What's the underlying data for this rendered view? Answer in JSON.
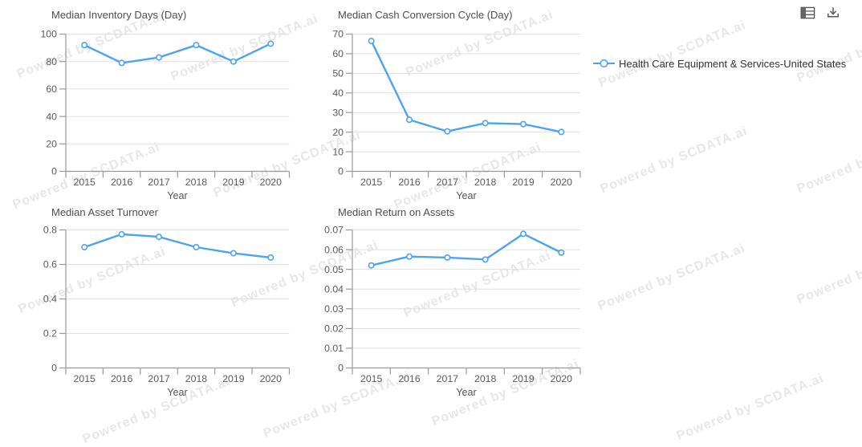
{
  "watermark": {
    "text": "Powered by SCDATA.ai"
  },
  "toolbar": {
    "data_view_tooltip": "Data View",
    "download_tooltip": "Download"
  },
  "legend": {
    "items": [
      {
        "label": "Health Care Equipment & Services-United States",
        "color": "#4da3f0"
      }
    ]
  },
  "colors": {
    "line": "#4da3f0",
    "marker_fill": "#ffffff",
    "grid": "#e0e0e0",
    "axis": "#999999",
    "tick_label": "#5a5a5a",
    "title": "#4e4e4e",
    "icon": "#555555"
  },
  "chart_data": [
    {
      "type": "line",
      "title": "Median Inventory Days (Day)",
      "xlabel": "Year",
      "ylabel": "",
      "categories": [
        "2015",
        "2016",
        "2017",
        "2018",
        "2019",
        "2020"
      ],
      "series": [
        {
          "name": "Health Care Equipment & Services-United States",
          "values": [
            92,
            79,
            83,
            92,
            80,
            93
          ]
        }
      ],
      "ylim": [
        0,
        100
      ],
      "yticks": [
        0,
        20,
        40,
        60,
        80,
        100
      ],
      "ytick_labels": [
        "0",
        "20",
        "40",
        "60",
        "80",
        "100"
      ],
      "grid": true,
      "legend_position": "right"
    },
    {
      "type": "line",
      "title": "Median Cash Conversion Cycle (Day)",
      "xlabel": "Year",
      "ylabel": "",
      "categories": [
        "2015",
        "2016",
        "2017",
        "2018",
        "2019",
        "2020"
      ],
      "series": [
        {
          "name": "Health Care Equipment & Services-United States",
          "values": [
            66.5,
            26.3,
            20.4,
            24.6,
            24.1,
            20.1
          ]
        }
      ],
      "ylim": [
        0,
        70
      ],
      "yticks": [
        0,
        10,
        20,
        30,
        40,
        50,
        60,
        70
      ],
      "ytick_labels": [
        "0",
        "10",
        "20",
        "30",
        "40",
        "50",
        "60",
        "70"
      ],
      "grid": true,
      "legend_position": "right"
    },
    {
      "type": "line",
      "title": "Median Asset Turnover",
      "xlabel": "Year",
      "ylabel": "",
      "categories": [
        "2015",
        "2016",
        "2017",
        "2018",
        "2019",
        "2020"
      ],
      "series": [
        {
          "name": "Health Care Equipment & Services-United States",
          "values": [
            0.7,
            0.775,
            0.76,
            0.7,
            0.665,
            0.64
          ]
        }
      ],
      "ylim": [
        0,
        0.8
      ],
      "yticks": [
        0,
        0.2,
        0.4,
        0.6,
        0.8
      ],
      "ytick_labels": [
        "0",
        "0.2",
        "0.4",
        "0.6",
        "0.8"
      ],
      "grid": true,
      "legend_position": "right"
    },
    {
      "type": "line",
      "title": "Median Return on Assets",
      "xlabel": "Year",
      "ylabel": "",
      "categories": [
        "2015",
        "2016",
        "2017",
        "2018",
        "2019",
        "2020"
      ],
      "series": [
        {
          "name": "Health Care Equipment & Services-United States",
          "values": [
            0.052,
            0.0565,
            0.056,
            0.055,
            0.068,
            0.0585
          ]
        }
      ],
      "ylim": [
        0,
        0.07
      ],
      "yticks": [
        0,
        0.01,
        0.02,
        0.03,
        0.04,
        0.05,
        0.06,
        0.07
      ],
      "ytick_labels": [
        "0",
        "0.01",
        "0.02",
        "0.03",
        "0.04",
        "0.05",
        "0.06",
        "0.07"
      ],
      "grid": true,
      "legend_position": "right"
    }
  ]
}
